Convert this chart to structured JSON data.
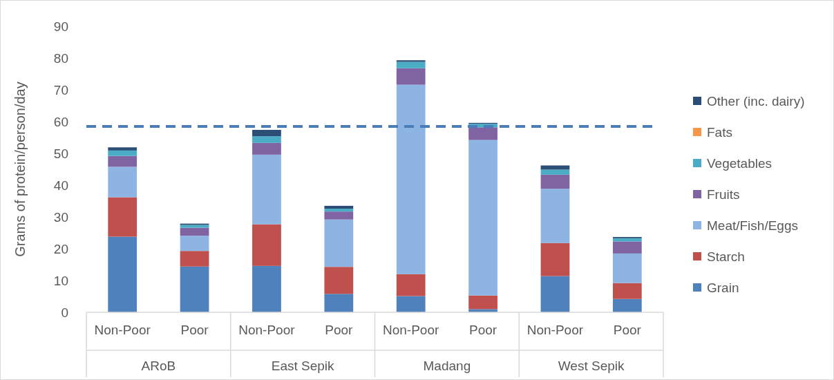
{
  "chart_data": {
    "type": "bar",
    "stacked": true,
    "ylabel": "Grams of protein/person/day",
    "categories": [
      "Non-Poor",
      "Poor",
      "Non-Poor",
      "Poor",
      "Non-Poor",
      "Poor",
      "Non-Poor",
      "Poor"
    ],
    "annotations": [
      "ARoB",
      "East Sepik",
      "Madang",
      "West Sepik"
    ],
    "ylim": [
      0,
      90
    ],
    "yticks": [
      0,
      10,
      20,
      30,
      40,
      50,
      60,
      70,
      80,
      90
    ],
    "grid": false,
    "legend": "right",
    "series": [
      {
        "name": "Grain",
        "color": "#4f81bd",
        "values": [
          23.8,
          14.4,
          14.6,
          5.8,
          5.1,
          1.0,
          11.4,
          4.2
        ]
      },
      {
        "name": "Starch",
        "color": "#c0504d",
        "values": [
          12.4,
          4.9,
          13.1,
          8.5,
          6.9,
          4.3,
          10.4,
          5.0
        ]
      },
      {
        "name": "Meat/Fish/Eggs",
        "color": "#8eb4e3",
        "values": [
          9.6,
          4.8,
          21.9,
          14.9,
          59.6,
          48.9,
          17.1,
          9.3
        ]
      },
      {
        "name": "Fruits",
        "color": "#8064a2",
        "values": [
          3.4,
          2.5,
          3.7,
          2.5,
          5.2,
          4.0,
          4.4,
          3.8
        ]
      },
      {
        "name": "Vegetables",
        "color": "#4bacc6",
        "values": [
          1.7,
          0.9,
          2.1,
          0.9,
          2.0,
          1.1,
          1.6,
          1.0
        ]
      },
      {
        "name": "Fats",
        "color": "#f79646",
        "values": [
          0,
          0,
          0,
          0,
          0,
          0,
          0,
          0
        ]
      },
      {
        "name": "Other (inc. dairy)",
        "color": "#2c4d75",
        "values": [
          1.0,
          0.4,
          2.0,
          0.9,
          0.5,
          0.3,
          1.3,
          0.4
        ]
      }
    ],
    "ref_lines": [
      {
        "axis": "y",
        "value": 58.5,
        "color": "#4a7ebb",
        "line_style": "dashed"
      }
    ]
  }
}
